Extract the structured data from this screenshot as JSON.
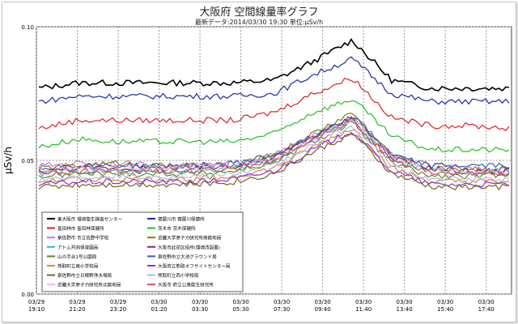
{
  "chart_data": {
    "type": "line",
    "title": "大阪府 空間線量率グラフ",
    "subtitle": "最新データ:2014/03/30 19:30 単位:μSv/h",
    "ylabel": "μSv/h",
    "ylim": [
      0,
      0.1
    ],
    "yticks": [
      "0.10",
      "0.05",
      "0.00"
    ],
    "grid": true,
    "legend_position": "bottom-left",
    "x_ticks": [
      {
        "date": "03/29",
        "time": "19:10"
      },
      {
        "date": "03/29",
        "time": "21:20"
      },
      {
        "date": "03/29",
        "time": "23:20"
      },
      {
        "date": "03/30",
        "time": "01:20"
      },
      {
        "date": "03/30",
        "time": "03:30"
      },
      {
        "date": "03/30",
        "time": "05:30"
      },
      {
        "date": "03/30",
        "time": "07:30"
      },
      {
        "date": "03/30",
        "time": "09:40"
      },
      {
        "date": "03/30",
        "time": "11:40"
      },
      {
        "date": "03/30",
        "time": "13:40"
      },
      {
        "date": "03/30",
        "time": "15:40"
      },
      {
        "date": "03/30",
        "time": "17:40"
      }
    ],
    "x": [
      "03/29 19:10",
      "03/29 21:20",
      "03/29 23:20",
      "03/30 01:20",
      "03/30 03:30",
      "03/30 05:30",
      "03/30 07:30",
      "03/30 09:40",
      "03/30 11:40",
      "03/30 13:40",
      "03/30 15:40",
      "03/30 17:40",
      "03/30 19:30"
    ],
    "series": [
      {
        "name": "東大阪市 環境衛生検査センター",
        "color": "#000000",
        "values": [
          0.077,
          0.079,
          0.079,
          0.079,
          0.079,
          0.079,
          0.08,
          0.087,
          0.095,
          0.08,
          0.077,
          0.077,
          0.077
        ]
      },
      {
        "name": "寝屋川市 寝屋川保健所",
        "color": "#1a2aa8",
        "values": [
          0.072,
          0.074,
          0.074,
          0.074,
          0.074,
          0.074,
          0.075,
          0.082,
          0.088,
          0.075,
          0.072,
          0.072,
          0.072
        ]
      },
      {
        "name": "富田林市 富田林保健所",
        "color": "#e02020",
        "values": [
          0.062,
          0.065,
          0.065,
          0.065,
          0.065,
          0.065,
          0.068,
          0.075,
          0.081,
          0.066,
          0.063,
          0.063,
          0.062
        ]
      },
      {
        "name": "茨木市 茨木保健所",
        "color": "#22c022",
        "values": [
          0.055,
          0.058,
          0.057,
          0.057,
          0.057,
          0.057,
          0.06,
          0.068,
          0.073,
          0.059,
          0.054,
          0.054,
          0.054
        ]
      },
      {
        "name": "泉佐野市 市立佐野中学校",
        "color": "#d070d0",
        "values": [
          0.048,
          0.049,
          0.049,
          0.048,
          0.048,
          0.049,
          0.052,
          0.059,
          0.066,
          0.052,
          0.048,
          0.047,
          0.047
        ]
      },
      {
        "name": "近畿大学原子力研究所南館地局",
        "color": "#808000",
        "values": [
          0.047,
          0.048,
          0.049,
          0.048,
          0.048,
          0.048,
          0.052,
          0.06,
          0.068,
          0.052,
          0.047,
          0.047,
          0.047
        ]
      },
      {
        "name": "アトム共同保育園局",
        "color": "#20c0c0",
        "values": [
          0.045,
          0.046,
          0.046,
          0.046,
          0.046,
          0.047,
          0.05,
          0.058,
          0.065,
          0.05,
          0.046,
          0.045,
          0.046
        ]
      },
      {
        "name": "大阪市此花区役所(環境改設置)",
        "color": "#7a2a7a",
        "values": [
          0.046,
          0.047,
          0.047,
          0.047,
          0.047,
          0.048,
          0.051,
          0.059,
          0.066,
          0.051,
          0.047,
          0.046,
          0.046
        ]
      },
      {
        "name": "山の手台1号公園局",
        "color": "#5a8a2a",
        "values": [
          0.044,
          0.045,
          0.045,
          0.045,
          0.045,
          0.046,
          0.049,
          0.057,
          0.064,
          0.049,
          0.044,
          0.044,
          0.045
        ]
      },
      {
        "name": "泉佐野市立大池グラウンド局",
        "color": "#3060b0",
        "values": [
          0.047,
          0.048,
          0.048,
          0.048,
          0.048,
          0.049,
          0.052,
          0.059,
          0.067,
          0.052,
          0.048,
          0.048,
          0.048
        ]
      },
      {
        "name": "熊取町立南小学校局",
        "color": "#e08040",
        "values": [
          0.042,
          0.043,
          0.043,
          0.043,
          0.043,
          0.044,
          0.047,
          0.055,
          0.062,
          0.047,
          0.042,
          0.042,
          0.042
        ]
      },
      {
        "name": "大阪府立熊取オフサイトセンター局",
        "color": "#9a2ad0",
        "values": [
          0.041,
          0.042,
          0.042,
          0.042,
          0.042,
          0.043,
          0.046,
          0.054,
          0.061,
          0.046,
          0.041,
          0.041,
          0.041
        ]
      },
      {
        "name": "泉佐野市立日根野浄水場局",
        "color": "#6a6a20",
        "values": [
          0.04,
          0.041,
          0.041,
          0.041,
          0.041,
          0.042,
          0.045,
          0.053,
          0.06,
          0.045,
          0.04,
          0.04,
          0.04
        ]
      },
      {
        "name": "熊取町立西小学校局",
        "color": "#a8c0e0",
        "values": [
          0.043,
          0.044,
          0.044,
          0.044,
          0.044,
          0.045,
          0.048,
          0.056,
          0.063,
          0.048,
          0.043,
          0.043,
          0.043
        ]
      },
      {
        "name": "近畿大学原子力研究所北館地局",
        "color": "#f0b0f0",
        "values": [
          0.046,
          0.047,
          0.047,
          0.047,
          0.047,
          0.048,
          0.051,
          0.058,
          0.065,
          0.051,
          0.046,
          0.046,
          0.046
        ]
      },
      {
        "name": "大阪市 府立公衆衛生研究所",
        "color": "#d05050",
        "values": [
          0.045,
          0.046,
          0.046,
          0.046,
          0.046,
          0.047,
          0.05,
          0.058,
          0.065,
          0.05,
          0.045,
          0.045,
          0.045
        ]
      }
    ]
  }
}
